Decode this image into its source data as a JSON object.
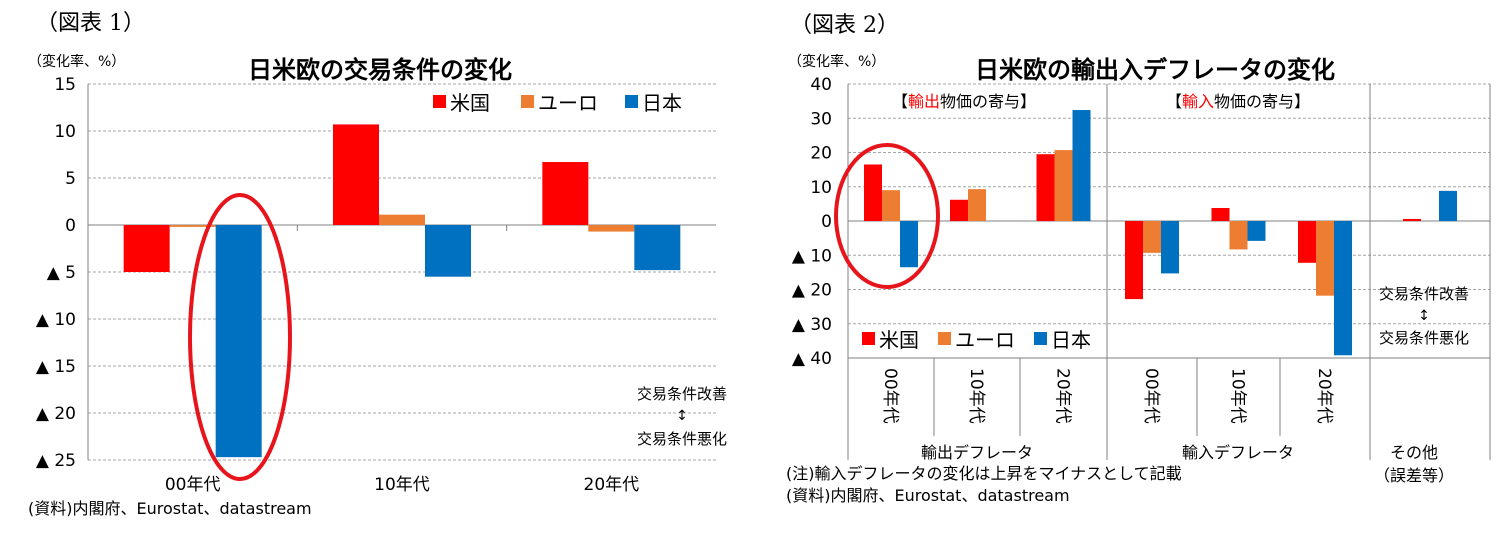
{
  "colors": {
    "us": "#ff0000",
    "euro": "#ed7d31",
    "japan": "#0070c0",
    "grid": "#a6a6a6",
    "axis": "#808080",
    "highlight": "#e8141c",
    "contribution_highlight": "#ff0000"
  },
  "chart_data": [
    {
      "type": "bar",
      "figure_label": "（図表 1）",
      "unit_label": "（変化率、%）",
      "title": "日米欧の交易条件の変化",
      "categories": [
        "00年代",
        "10年代",
        "20年代"
      ],
      "series": [
        {
          "name": "米国",
          "color_key": "us",
          "values": [
            -5.0,
            10.7,
            6.7
          ]
        },
        {
          "name": "ユーロ",
          "color_key": "euro",
          "values": [
            -0.2,
            1.1,
            -0.7
          ]
        },
        {
          "name": "日本",
          "color_key": "japan",
          "values": [
            -24.7,
            -5.5,
            -4.8
          ]
        }
      ],
      "ylim": [
        -25,
        15
      ],
      "yticks": [
        15,
        10,
        5,
        0,
        -5,
        -10,
        -15,
        -20,
        -25
      ],
      "ytick_labels": [
        "15",
        "10",
        "5",
        "0",
        "▲ 5",
        "▲ 10",
        "▲ 15",
        "▲ 20",
        "▲ 25"
      ],
      "grid": true,
      "legend_position": "top-right",
      "annotation": {
        "improve": "交易条件改善",
        "arrow": "↕",
        "worsen": "交易条件悪化"
      },
      "highlight": "00年代 日本",
      "source": "(資料)内閣府、Eurostat、datastream"
    },
    {
      "type": "bar",
      "figure_label": "（図表 2）",
      "unit_label": "（変化率、%）",
      "title": "日米欧の輸出入デフレータの変化",
      "categories": [
        "00年代",
        "10年代",
        "20年代",
        "00年代",
        "10年代",
        "20年代",
        ""
      ],
      "groups": [
        {
          "label": "輸出デフレータ",
          "span": [
            0,
            3
          ]
        },
        {
          "label": "輸入デフレータ",
          "span": [
            3,
            6
          ]
        },
        {
          "label_line1": "その他",
          "label_line2": "（誤差等）",
          "span": [
            6,
            7
          ]
        }
      ],
      "section_labels": [
        {
          "open": "【",
          "accent": "輸出",
          "rest": "物価の寄与】"
        },
        {
          "open": "【",
          "accent": "輸入",
          "rest": "物価の寄与】"
        }
      ],
      "series": [
        {
          "name": "米国",
          "color_key": "us",
          "values": [
            16.5,
            6.2,
            19.5,
            -22.8,
            3.8,
            -12.2,
            0.6
          ]
        },
        {
          "name": "ユーロ",
          "color_key": "euro",
          "values": [
            9.0,
            9.3,
            20.7,
            -9.3,
            -8.3,
            -21.8,
            0
          ]
        },
        {
          "name": "日本",
          "color_key": "japan",
          "values": [
            -13.5,
            0,
            32.4,
            -15.3,
            -5.8,
            -39.2,
            8.8
          ]
        }
      ],
      "ylim": [
        -40,
        40
      ],
      "yticks": [
        40,
        30,
        20,
        10,
        0,
        -10,
        -20,
        -30,
        -40
      ],
      "ytick_labels": [
        "40",
        "30",
        "20",
        "10",
        "0",
        "▲ 10",
        "▲ 20",
        "▲ 30",
        "▲ 40"
      ],
      "grid": true,
      "legend_position": "bottom-left",
      "annotation": {
        "improve": "交易条件改善",
        "arrow": "↕",
        "worsen": "交易条件悪化"
      },
      "highlight": "輸出デフレータ 00年代",
      "note": "(注)輸入デフレータの変化は上昇をマイナスとして記載",
      "source": "(資料)内閣府、Eurostat、datastream"
    }
  ]
}
